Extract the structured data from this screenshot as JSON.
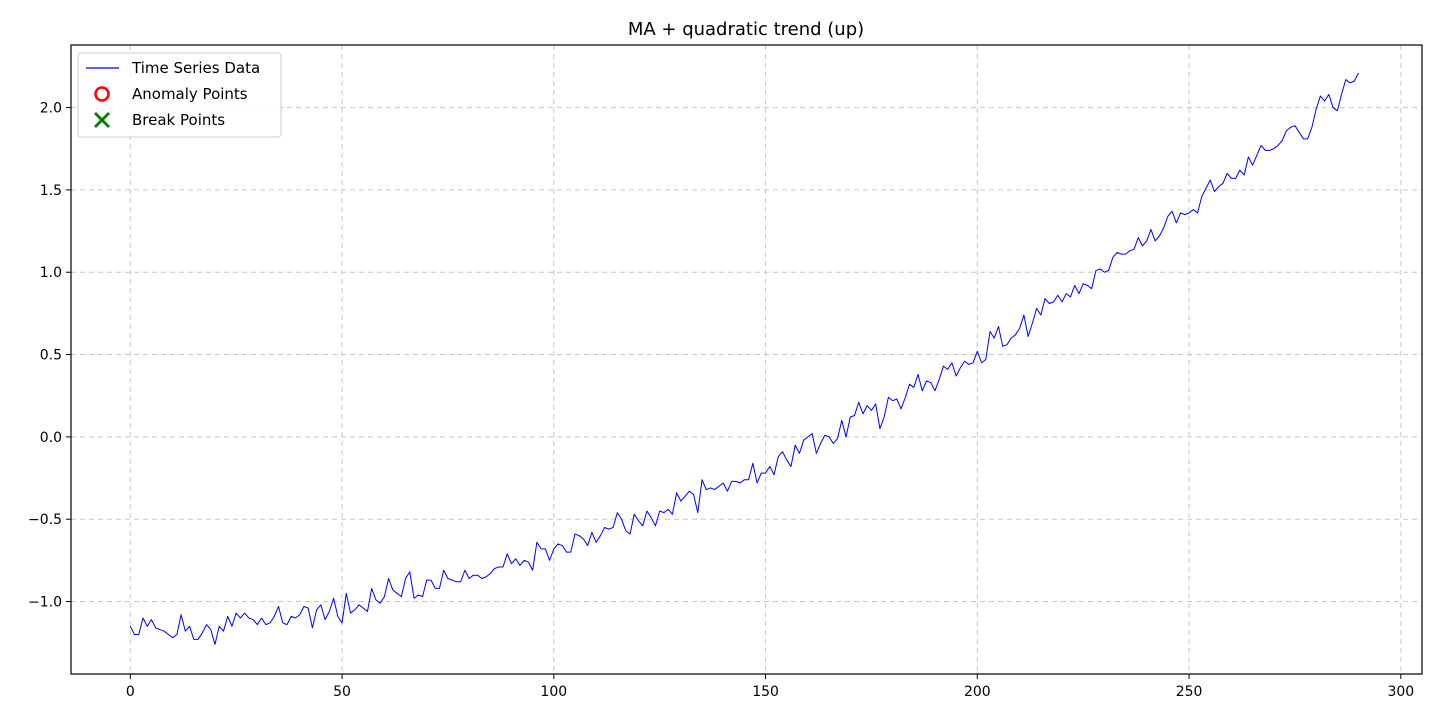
{
  "chart_data": {
    "type": "line",
    "title": "MA + quadratic trend (up)",
    "xlabel": "",
    "ylabel": "",
    "xlim": [
      -14,
      305
    ],
    "ylim": [
      -1.44,
      2.38
    ],
    "xticks": [
      0,
      50,
      100,
      150,
      200,
      250,
      300
    ],
    "xtick_labels": [
      "0",
      "50",
      "100",
      "150",
      "200",
      "250",
      "300"
    ],
    "yticks": [
      -1.0,
      -0.5,
      0.0,
      0.5,
      1.0,
      1.5,
      2.0
    ],
    "ytick_labels": [
      "−1.0",
      "−0.5",
      "0.0",
      "0.5",
      "1.0",
      "1.5",
      "2.0"
    ],
    "grid": true,
    "legend_position": "top-left",
    "legend": [
      {
        "label": "Time Series Data",
        "marker": "line",
        "color": "#0000ff"
      },
      {
        "label": "Anomaly Points",
        "marker": "circle",
        "color": "#ff0000"
      },
      {
        "label": "Break Points",
        "marker": "x",
        "color": "#008000"
      }
    ],
    "series": [
      {
        "name": "Time Series Data",
        "color": "#0000ff",
        "x_start": 0,
        "x_step": 1,
        "values": [
          -1.15,
          -1.2,
          -1.2,
          -1.1,
          -1.15,
          -1.11,
          -1.16,
          -1.17,
          -1.18,
          -1.2,
          -1.22,
          -1.2,
          -1.08,
          -1.18,
          -1.15,
          -1.23,
          -1.23,
          -1.19,
          -1.14,
          -1.17,
          -1.26,
          -1.15,
          -1.18,
          -1.09,
          -1.15,
          -1.07,
          -1.1,
          -1.07,
          -1.1,
          -1.11,
          -1.14,
          -1.1,
          -1.14,
          -1.13,
          -1.09,
          -1.03,
          -1.13,
          -1.14,
          -1.09,
          -1.1,
          -1.08,
          -1.03,
          -1.04,
          -1.16,
          -1.05,
          -1.02,
          -1.11,
          -1.06,
          -0.98,
          -1.09,
          -1.13,
          -0.95,
          -1.07,
          -1.05,
          -1.02,
          -1.04,
          -1.06,
          -0.92,
          -0.99,
          -1.01,
          -0.97,
          -0.86,
          -0.93,
          -0.95,
          -0.97,
          -0.86,
          -0.82,
          -0.98,
          -0.96,
          -0.97,
          -0.87,
          -0.87,
          -0.92,
          -0.92,
          -0.81,
          -0.86,
          -0.87,
          -0.88,
          -0.88,
          -0.81,
          -0.86,
          -0.84,
          -0.84,
          -0.86,
          -0.85,
          -0.83,
          -0.8,
          -0.79,
          -0.79,
          -0.71,
          -0.77,
          -0.74,
          -0.78,
          -0.75,
          -0.76,
          -0.81,
          -0.64,
          -0.68,
          -0.68,
          -0.75,
          -0.68,
          -0.65,
          -0.66,
          -0.7,
          -0.7,
          -0.59,
          -0.6,
          -0.62,
          -0.66,
          -0.58,
          -0.64,
          -0.6,
          -0.55,
          -0.56,
          -0.55,
          -0.46,
          -0.5,
          -0.57,
          -0.59,
          -0.47,
          -0.51,
          -0.54,
          -0.45,
          -0.49,
          -0.54,
          -0.45,
          -0.46,
          -0.44,
          -0.47,
          -0.34,
          -0.39,
          -0.36,
          -0.33,
          -0.35,
          -0.46,
          -0.26,
          -0.32,
          -0.31,
          -0.32,
          -0.3,
          -0.28,
          -0.33,
          -0.27,
          -0.27,
          -0.28,
          -0.26,
          -0.26,
          -0.16,
          -0.28,
          -0.22,
          -0.22,
          -0.18,
          -0.23,
          -0.12,
          -0.09,
          -0.14,
          -0.18,
          -0.05,
          -0.1,
          -0.02,
          0.0,
          0.02,
          -0.1,
          -0.04,
          0.01,
          0.0,
          -0.04,
          -0.01,
          0.1,
          0.0,
          0.12,
          0.13,
          0.21,
          0.14,
          0.19,
          0.16,
          0.2,
          0.05,
          0.12,
          0.24,
          0.22,
          0.23,
          0.17,
          0.24,
          0.32,
          0.3,
          0.38,
          0.28,
          0.34,
          0.33,
          0.28,
          0.35,
          0.43,
          0.41,
          0.45,
          0.37,
          0.42,
          0.46,
          0.44,
          0.45,
          0.52,
          0.45,
          0.47,
          0.64,
          0.6,
          0.67,
          0.55,
          0.56,
          0.6,
          0.62,
          0.66,
          0.74,
          0.61,
          0.69,
          0.78,
          0.74,
          0.84,
          0.81,
          0.82,
          0.86,
          0.82,
          0.87,
          0.85,
          0.92,
          0.87,
          0.93,
          0.92,
          0.9,
          1.01,
          1.02,
          1.0,
          1.01,
          1.09,
          1.12,
          1.11,
          1.11,
          1.13,
          1.14,
          1.21,
          1.16,
          1.19,
          1.26,
          1.19,
          1.22,
          1.27,
          1.34,
          1.37,
          1.3,
          1.36,
          1.35,
          1.36,
          1.38,
          1.36,
          1.46,
          1.51,
          1.56,
          1.49,
          1.52,
          1.54,
          1.6,
          1.57,
          1.57,
          1.62,
          1.59,
          1.7,
          1.65,
          1.71,
          1.77,
          1.74,
          1.74,
          1.75,
          1.77,
          1.8,
          1.86,
          1.88,
          1.89,
          1.85,
          1.81,
          1.81,
          1.88,
          1.99,
          2.07,
          2.04,
          2.08,
          2.0,
          1.98,
          2.08,
          2.17,
          2.15,
          2.16,
          2.21
        ]
      },
      {
        "name": "Anomaly Points",
        "color": "#ff0000",
        "x": [],
        "values": []
      },
      {
        "name": "Break Points",
        "color": "#008000",
        "x": [],
        "values": []
      }
    ]
  }
}
